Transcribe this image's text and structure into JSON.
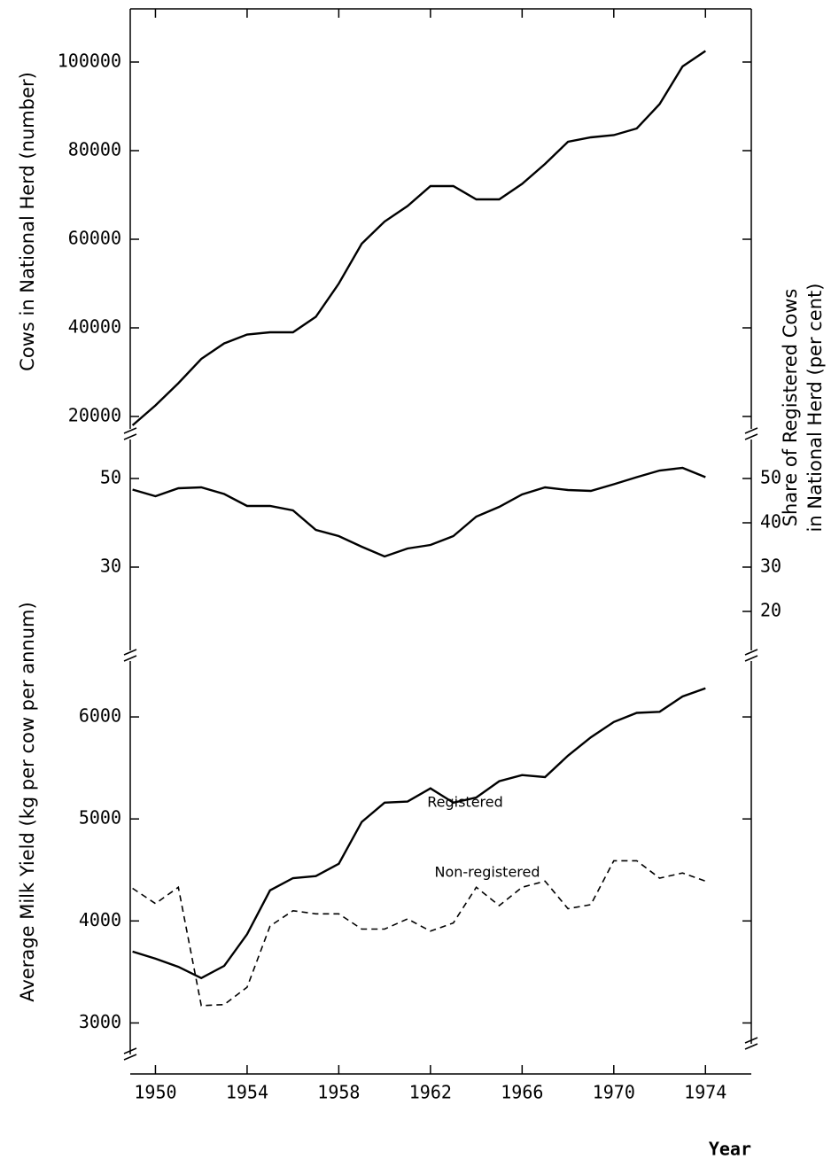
{
  "chart_data": [
    {
      "type": "line",
      "ylabel": "Cows in National Herd (number)",
      "x": [
        1949,
        1950,
        1951,
        1952,
        1953,
        1954,
        1955,
        1956,
        1957,
        1958,
        1959,
        1960,
        1961,
        1962,
        1963,
        1964,
        1965,
        1966,
        1967,
        1968,
        1969,
        1970,
        1971,
        1972,
        1973,
        1974
      ],
      "xlim": [
        1948.9,
        1976
      ],
      "ylim": [
        16000,
        112000
      ],
      "yticks": [
        20000,
        40000,
        60000,
        80000,
        100000
      ],
      "series": [
        {
          "color": "#000000",
          "values": [
            18000,
            22500,
            27500,
            33000,
            36500,
            38500,
            39000,
            39000,
            42500,
            50000,
            59000,
            64000,
            67500,
            72000,
            72000,
            69000,
            69000,
            72500,
            77000,
            82000,
            83000,
            83500,
            85000,
            90500,
            99000,
            102500
          ]
        }
      ]
    },
    {
      "type": "line",
      "y2label": [
        "Share of Registered Cows",
        "in National Herd (per cent)"
      ],
      "x": [
        1949,
        1950,
        1951,
        1952,
        1953,
        1954,
        1955,
        1956,
        1957,
        1958,
        1959,
        1960,
        1961,
        1962,
        1963,
        1964,
        1965,
        1966,
        1967,
        1968,
        1969,
        1970,
        1971,
        1972,
        1973,
        1974
      ],
      "xlim": [
        1948.9,
        1976
      ],
      "ylim": [
        10,
        60
      ],
      "yticks": [
        30,
        50
      ],
      "y2lim": [
        10,
        60
      ],
      "y2ticks": [
        20,
        30,
        40,
        50
      ],
      "series": [
        {
          "color": "#000000",
          "axis": "y2",
          "values": [
            47.5,
            46,
            47.8,
            48,
            46.5,
            43.8,
            43.8,
            42.8,
            38.4,
            37,
            34.6,
            32.4,
            34.2,
            35,
            37,
            41.4,
            43.6,
            46.4,
            48,
            47.4,
            47.2,
            48.7,
            50.3,
            51.8,
            52.4,
            50.3
          ]
        }
      ]
    },
    {
      "type": "line",
      "ylabel": "Average Milk Yield (kg per cow per annum)",
      "xlabel": "Year",
      "x": [
        1949,
        1950,
        1951,
        1952,
        1953,
        1954,
        1955,
        1956,
        1957,
        1958,
        1959,
        1960,
        1961,
        1962,
        1963,
        1964,
        1965,
        1966,
        1967,
        1968,
        1969,
        1970,
        1971,
        1972,
        1973,
        1974
      ],
      "xlim": [
        1948.9,
        1976
      ],
      "xticks": [
        1950,
        1954,
        1958,
        1962,
        1966,
        1970,
        1974
      ],
      "ylim": [
        2500,
        6600
      ],
      "yticks": [
        3000,
        4000,
        5000,
        6000
      ],
      "series": [
        {
          "name": "Registered",
          "color": "#000000",
          "values": [
            3700,
            3630,
            3550,
            3440,
            3560,
            3870,
            4300,
            4420,
            4440,
            4560,
            4970,
            5160,
            5170,
            5300,
            5160,
            5210,
            5370,
            5430,
            5410,
            5620,
            5800,
            5950,
            6040,
            6050,
            6200,
            6280
          ]
        },
        {
          "name": "Non-registered",
          "color": "#000000",
          "dash": true,
          "values": [
            4320,
            4170,
            4330,
            3170,
            3180,
            3350,
            3950,
            4100,
            4070,
            4070,
            3920,
            3920,
            4020,
            3900,
            3980,
            4330,
            4150,
            4330,
            4390,
            4120,
            4160,
            4590,
            4590,
            4420,
            4470,
            4390
          ]
        }
      ]
    }
  ]
}
